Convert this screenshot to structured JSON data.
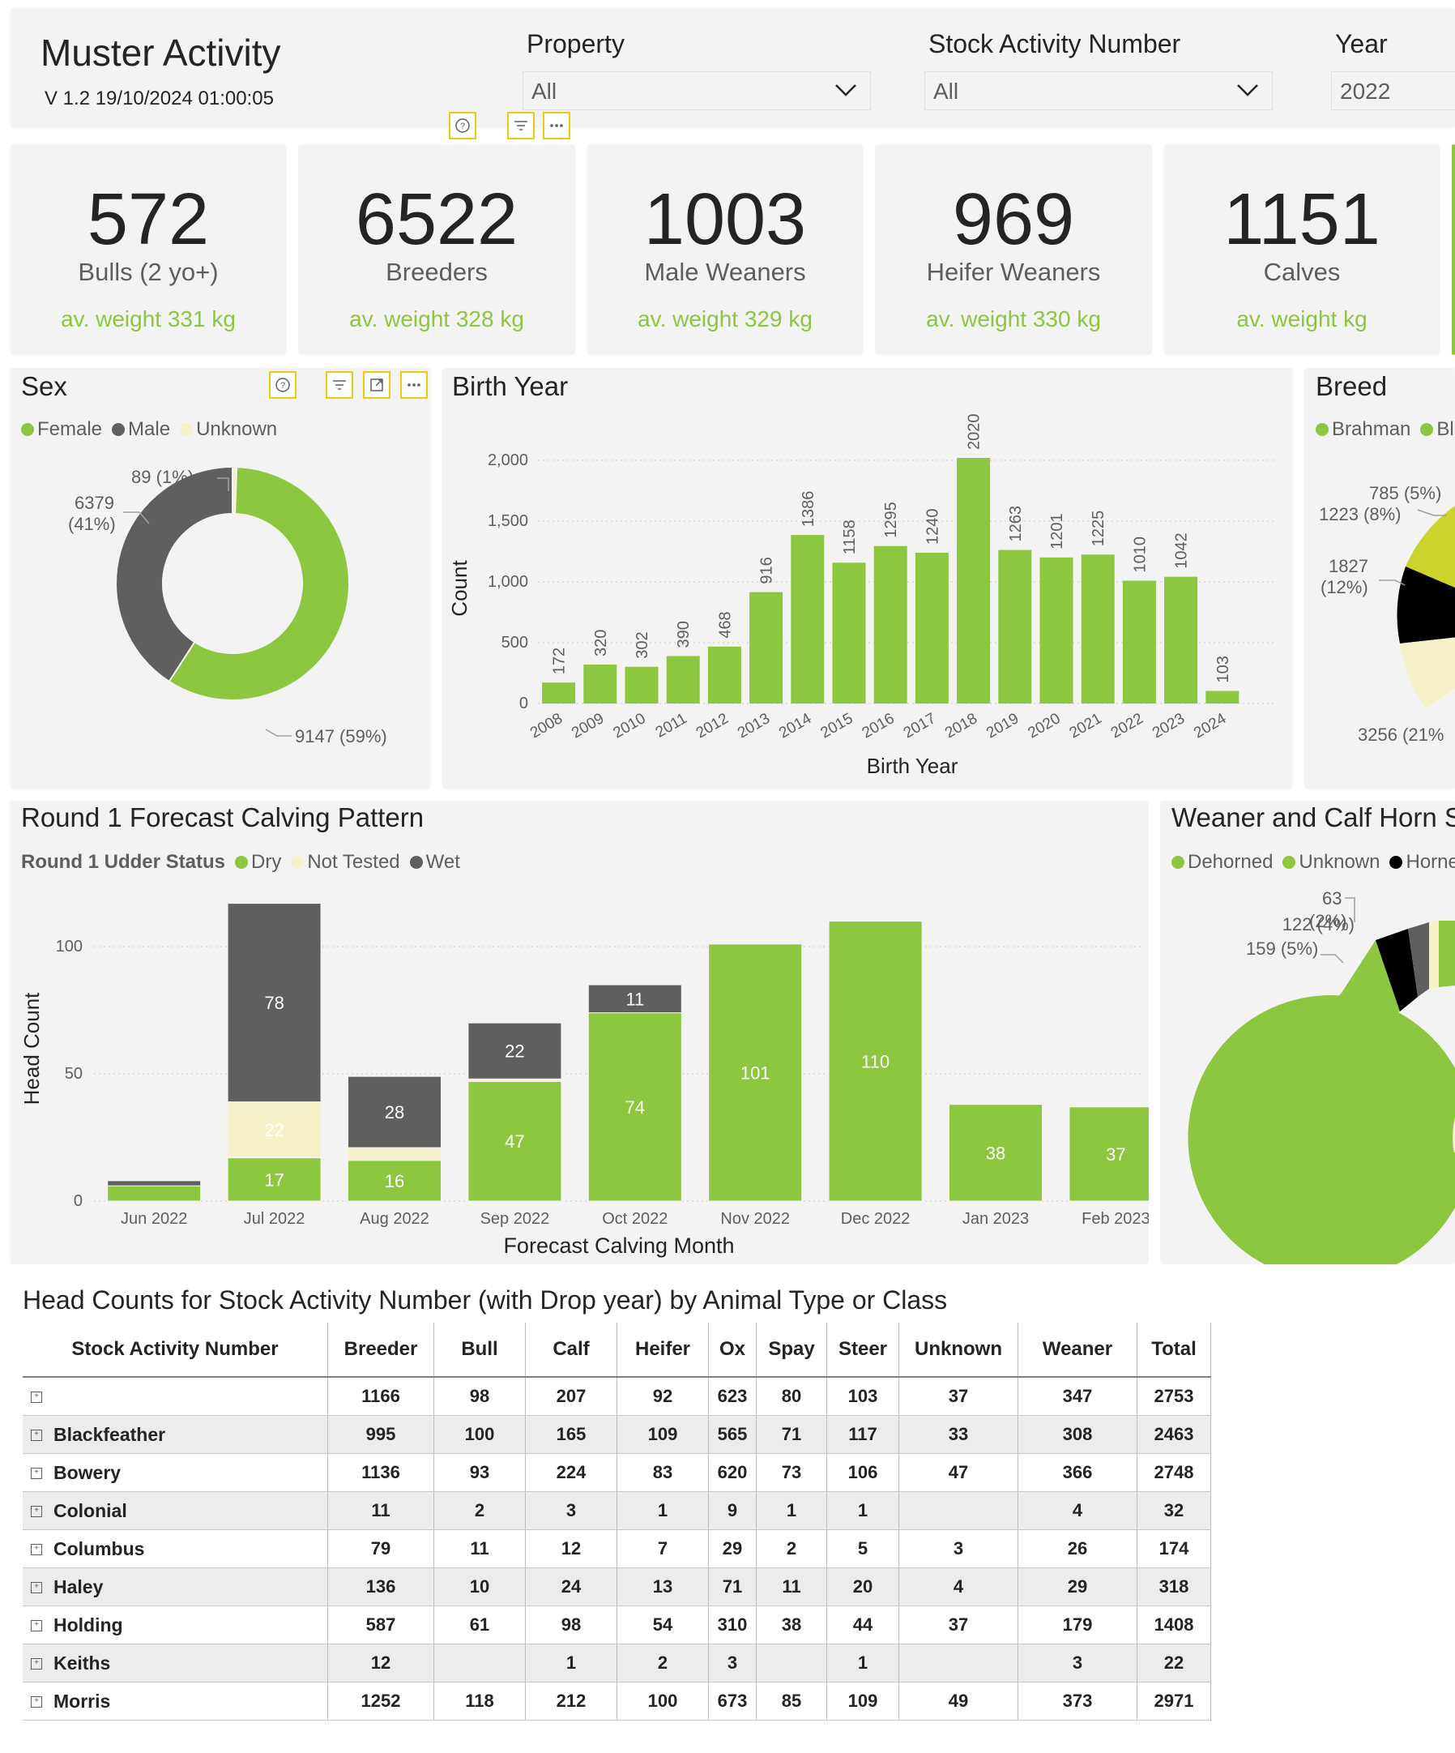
{
  "header": {
    "title": "Muster Activity",
    "version": "V 1.2 19/10/2024 01:00:05",
    "filters": [
      {
        "label": "Property",
        "value": "All"
      },
      {
        "label": "Stock Activity Number",
        "value": "All"
      },
      {
        "label": "Year",
        "value": "2022"
      }
    ]
  },
  "cards": [
    {
      "number": "572",
      "label": "Bulls (2 yo+)",
      "weight": "av. weight 331 kg"
    },
    {
      "number": "6522",
      "label": "Breeders",
      "weight": "av. weight 328 kg"
    },
    {
      "number": "1003",
      "label": "Male Weaners",
      "weight": "av. weight 329 kg"
    },
    {
      "number": "969",
      "label": "Heifer Weaners",
      "weight": "av. weight 330 kg"
    },
    {
      "number": "1151",
      "label": "Calves",
      "weight": "av. weight  kg"
    }
  ],
  "sex": {
    "title": "Sex",
    "legend": [
      "Female",
      "Male",
      "Unknown"
    ],
    "labels": {
      "female": "9147 (59%)",
      "male_line1": "6379",
      "male_line2": "(41%)",
      "unknown": "89 (1%)"
    }
  },
  "birth_year": {
    "title": "Birth Year",
    "xlabel": "Birth Year",
    "ylabel": "Count",
    "yticks": [
      "2,000",
      "1,500",
      "1,000",
      "500",
      "0"
    ]
  },
  "breed": {
    "title": "Breed",
    "legend": [
      "Brahman",
      "Bl"
    ],
    "labels": [
      "785 (5%)",
      "1223 (8%)",
      "1827",
      "(12%)",
      "3256 (21%"
    ]
  },
  "calving": {
    "title": "Round 1 Forecast Calving Pattern",
    "legend_title": "Round 1 Udder Status",
    "legend": [
      "Dry",
      "Not Tested",
      "Wet"
    ],
    "xlabel": "Forecast Calving Month",
    "ylabel": "Head Count",
    "yticks": [
      "100",
      "50",
      "0"
    ]
  },
  "horn": {
    "title": "Weaner and Calf Horn S",
    "legend": [
      "Dehorned",
      "Unknown",
      "Horne"
    ],
    "labels": [
      "63",
      "(2%)",
      "122 (4%)",
      "159 (5%)"
    ]
  },
  "table": {
    "title": "Head Counts for Stock Activity Number (with Drop year) by Animal Type or Class",
    "columns": [
      "Stock Activity Number",
      "Breeder",
      "Bull",
      "Calf",
      "Heifer",
      "Ox",
      "Spay",
      "Steer",
      "Unknown",
      "Weaner",
      "Total"
    ],
    "rows": [
      [
        "",
        "1166",
        "98",
        "207",
        "92",
        "623",
        "80",
        "103",
        "37",
        "347",
        "2753"
      ],
      [
        "Blackfeather",
        "995",
        "100",
        "165",
        "109",
        "565",
        "71",
        "117",
        "33",
        "308",
        "2463"
      ],
      [
        "Bowery",
        "1136",
        "93",
        "224",
        "83",
        "620",
        "73",
        "106",
        "47",
        "366",
        "2748"
      ],
      [
        "Colonial",
        "11",
        "2",
        "3",
        "1",
        "9",
        "1",
        "1",
        "",
        "4",
        "32"
      ],
      [
        "Columbus",
        "79",
        "11",
        "12",
        "7",
        "29",
        "2",
        "5",
        "3",
        "26",
        "174"
      ],
      [
        "Haley",
        "136",
        "10",
        "24",
        "13",
        "71",
        "11",
        "20",
        "4",
        "29",
        "318"
      ],
      [
        "Holding",
        "587",
        "61",
        "98",
        "54",
        "310",
        "38",
        "44",
        "37",
        "179",
        "1408"
      ],
      [
        "Keiths",
        "12",
        "",
        "1",
        "2",
        "3",
        "",
        "1",
        "",
        "3",
        "22"
      ],
      [
        "Morris",
        "1252",
        "118",
        "212",
        "100",
        "673",
        "85",
        "109",
        "49",
        "373",
        "2971"
      ]
    ]
  },
  "chart_data": [
    {
      "type": "pie",
      "title": "Sex",
      "categories": [
        "Female",
        "Male",
        "Unknown"
      ],
      "values": [
        9147,
        6379,
        89
      ],
      "colors": [
        "#8dc63f",
        "#5f5f5f",
        "#f5f2c9"
      ]
    },
    {
      "type": "bar",
      "title": "Birth Year",
      "xlabel": "Birth Year",
      "ylabel": "Count",
      "ylim": [
        0,
        2000
      ],
      "categories": [
        "2008",
        "2009",
        "2010",
        "2011",
        "2012",
        "2013",
        "2014",
        "2015",
        "2016",
        "2017",
        "2018",
        "2019",
        "2020",
        "2021",
        "2022",
        "2023",
        "2024"
      ],
      "values": [
        172,
        320,
        302,
        390,
        468,
        916,
        1386,
        1158,
        1295,
        1240,
        2020,
        1263,
        1201,
        1225,
        1010,
        1042,
        103
      ],
      "color": "#8dc63f"
    },
    {
      "type": "bar",
      "title": "Round 1 Forecast Calving Pattern",
      "stacked": true,
      "xlabel": "Forecast Calving Month",
      "ylabel": "Head Count",
      "ylim": [
        0,
        120
      ],
      "categories": [
        "Jun 2022",
        "Jul 2022",
        "Aug 2022",
        "Sep 2022",
        "Oct 2022",
        "Nov 2022",
        "Dec 2022",
        "Jan 2023",
        "Feb 2023"
      ],
      "series": [
        {
          "name": "Dry",
          "values": [
            6,
            17,
            16,
            47,
            74,
            101,
            110,
            38,
            37
          ],
          "color": "#8dc63f"
        },
        {
          "name": "Not Tested",
          "values": [
            0,
            22,
            5,
            1,
            0,
            0,
            0,
            0,
            0
          ],
          "color": "#f5f2c9"
        },
        {
          "name": "Wet",
          "values": [
            2,
            78,
            28,
            22,
            11,
            0,
            0,
            0,
            0
          ],
          "color": "#5f5f5f"
        }
      ]
    }
  ]
}
